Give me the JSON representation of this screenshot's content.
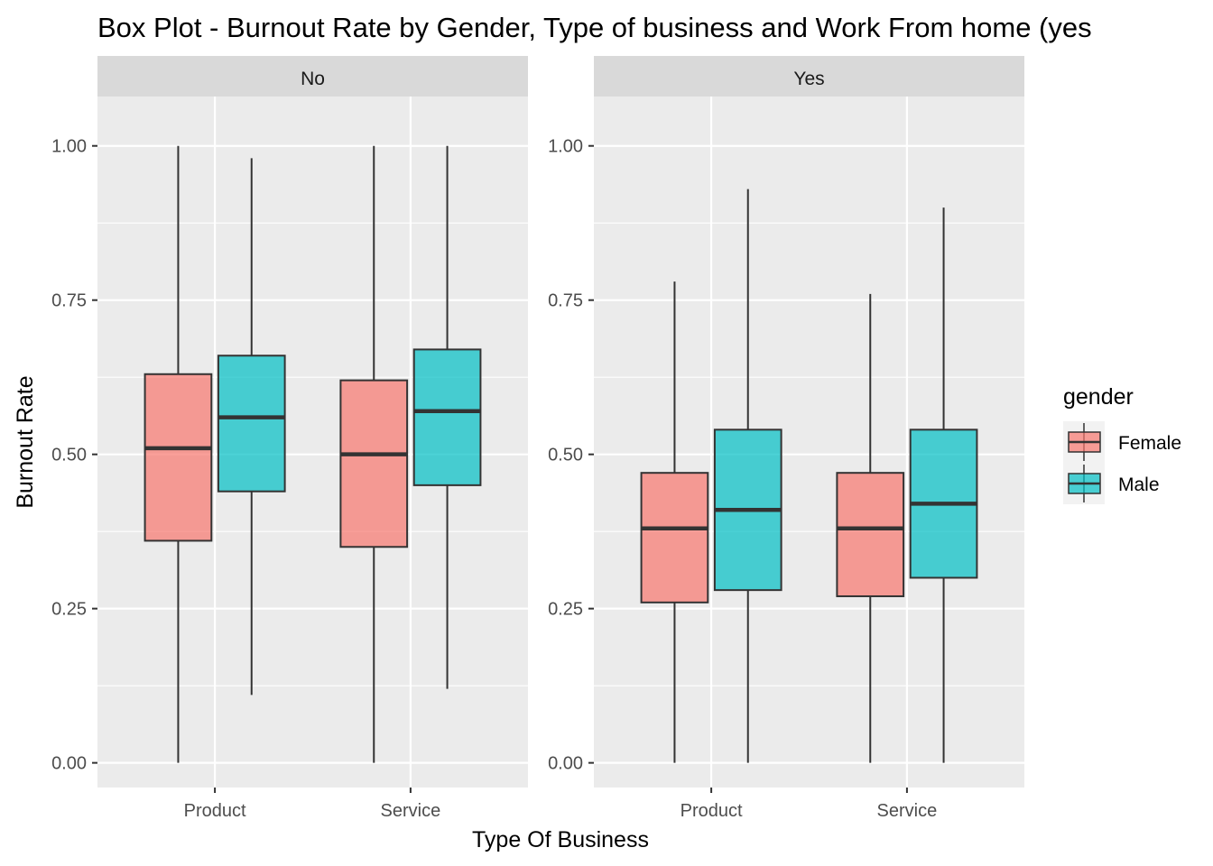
{
  "chart_data": {
    "type": "box",
    "title": "Box Plot - Burnout Rate by Gender, Type of business and Work From home (yes",
    "xlabel": "Type Of Business",
    "ylabel": "Burnout Rate",
    "ylim": [
      -0.04,
      1.08
    ],
    "y_ticks": [
      "0.00",
      "0.25",
      "0.50",
      "0.75",
      "1.00"
    ],
    "y_tick_values": [
      0,
      0.25,
      0.5,
      0.75,
      1.0
    ],
    "categories": [
      "Product",
      "Service"
    ],
    "grid": true,
    "legend": {
      "title": "gender",
      "placement": "right",
      "entries": [
        "Female",
        "Male"
      ]
    },
    "colors": {
      "Female": "#F8766D",
      "Male": "#00BFC4",
      "panel_background": "#EBEBEB",
      "strip_background": "#D9D9D9",
      "gridline": "#FFFFFF"
    },
    "facets": [
      {
        "label": "No",
        "groups": [
          {
            "category": "Product",
            "gender": "Female",
            "min": 0.0,
            "q1": 0.36,
            "median": 0.51,
            "q3": 0.63,
            "max": 1.0
          },
          {
            "category": "Product",
            "gender": "Male",
            "min": 0.11,
            "q1": 0.44,
            "median": 0.56,
            "q3": 0.66,
            "max": 0.98
          },
          {
            "category": "Service",
            "gender": "Female",
            "min": 0.0,
            "q1": 0.35,
            "median": 0.5,
            "q3": 0.62,
            "max": 1.0
          },
          {
            "category": "Service",
            "gender": "Male",
            "min": 0.12,
            "q1": 0.45,
            "median": 0.57,
            "q3": 0.67,
            "max": 1.0
          }
        ]
      },
      {
        "label": "Yes",
        "groups": [
          {
            "category": "Product",
            "gender": "Female",
            "min": 0.0,
            "q1": 0.26,
            "median": 0.38,
            "q3": 0.47,
            "max": 0.78
          },
          {
            "category": "Product",
            "gender": "Male",
            "min": 0.0,
            "q1": 0.28,
            "median": 0.41,
            "q3": 0.54,
            "max": 0.93
          },
          {
            "category": "Service",
            "gender": "Female",
            "min": 0.0,
            "q1": 0.27,
            "median": 0.38,
            "q3": 0.47,
            "max": 0.76
          },
          {
            "category": "Service",
            "gender": "Male",
            "min": 0.0,
            "q1": 0.3,
            "median": 0.42,
            "q3": 0.54,
            "max": 0.9
          }
        ]
      }
    ]
  }
}
